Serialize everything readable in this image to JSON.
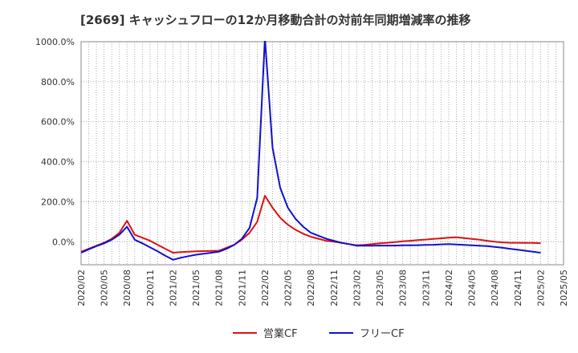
{
  "chart_data": {
    "type": "line",
    "title": "[2669] キャッシュフローの12か月移動合計の対前年同期増減率の推移",
    "xlabel": "",
    "ylabel": "",
    "ylim": [
      -115,
      1000
    ],
    "yticks": [
      0,
      200,
      400,
      600,
      800,
      1000
    ],
    "ytick_labels": [
      "0.0%",
      "200.0%",
      "400.0%",
      "600.0%",
      "800.0%",
      "1000.0%"
    ],
    "grid": true,
    "legend_position": "bottom-center",
    "x": [
      "2020/02",
      "2020/03",
      "2020/04",
      "2020/05",
      "2020/06",
      "2020/07",
      "2020/08",
      "2020/09",
      "2020/10",
      "2020/11",
      "2020/12",
      "2021/01",
      "2021/02",
      "2021/03",
      "2021/04",
      "2021/05",
      "2021/06",
      "2021/07",
      "2021/08",
      "2021/09",
      "2021/10",
      "2021/11",
      "2021/12",
      "2022/01",
      "2022/02",
      "2022/03",
      "2022/04",
      "2022/05",
      "2022/06",
      "2022/07",
      "2022/08",
      "2022/09",
      "2022/10",
      "2022/11",
      "2022/12",
      "2023/01",
      "2023/02",
      "2023/03",
      "2023/04",
      "2023/05",
      "2023/06",
      "2023/07",
      "2023/08",
      "2023/09",
      "2023/10",
      "2023/11",
      "2023/12",
      "2024/01",
      "2024/02",
      "2024/03",
      "2024/04",
      "2024/05",
      "2024/06",
      "2024/07",
      "2024/08",
      "2024/09",
      "2024/10",
      "2024/11",
      "2024/12",
      "2025/01",
      "2025/02",
      "2025/03",
      "2025/04",
      "2025/05"
    ],
    "xtick_labels": [
      "2020/02",
      "2020/05",
      "2020/08",
      "2020/11",
      "2021/02",
      "2021/05",
      "2021/08",
      "2021/11",
      "2022/02",
      "2022/05",
      "2022/08",
      "2022/11",
      "2023/02",
      "2023/05",
      "2023/08",
      "2023/11",
      "2024/02",
      "2024/05",
      "2024/08",
      "2024/11",
      "2025/02",
      "2025/05"
    ],
    "series": [
      {
        "name": "営業CF",
        "color": "#dd1111",
        "values": [
          -50,
          -35,
          -20,
          -5,
          15,
          45,
          105,
          35,
          20,
          5,
          -15,
          -35,
          -55,
          -52,
          -50,
          -48,
          -47,
          -46,
          -45,
          -30,
          -15,
          10,
          45,
          100,
          230,
          170,
          120,
          85,
          60,
          40,
          25,
          15,
          5,
          0,
          -5,
          -12,
          -18,
          -16,
          -12,
          -8,
          -5,
          -2,
          2,
          5,
          8,
          11,
          14,
          17,
          20,
          22,
          18,
          14,
          10,
          5,
          0,
          -3,
          -5,
          -5,
          -6,
          -6,
          -7,
          null,
          null,
          null
        ]
      },
      {
        "name": "フリーCF",
        "color": "#1111cc",
        "values": [
          -55,
          -38,
          -22,
          -8,
          10,
          35,
          75,
          10,
          -8,
          -28,
          -48,
          -70,
          -90,
          -80,
          -72,
          -65,
          -60,
          -55,
          -50,
          -35,
          -15,
          15,
          70,
          220,
          1020,
          470,
          270,
          170,
          115,
          75,
          45,
          30,
          15,
          5,
          -5,
          -12,
          -20,
          -20,
          -20,
          -19,
          -19,
          -19,
          -18,
          -18,
          -17,
          -16,
          -15,
          -13,
          -12,
          -14,
          -16,
          -18,
          -20,
          -22,
          -26,
          -30,
          -35,
          -40,
          -45,
          -50,
          -55,
          null,
          null,
          null
        ]
      }
    ]
  }
}
